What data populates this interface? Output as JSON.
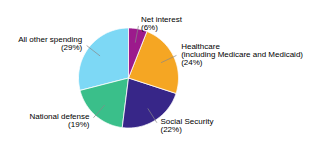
{
  "chart_data": {
    "type": "pie",
    "categories": [
      "All other spending\n(29%)",
      "National defense\n(19%)",
      "Social Security\n(22%)",
      "Healthcare\n(including Medicare and Medicaid)\n(24%)",
      "Net interest\n(6%)"
    ],
    "values": [
      29,
      19,
      22,
      24,
      6
    ],
    "colors": [
      "#7dd8f5",
      "#3abf8a",
      "#372688",
      "#f5a623",
      "#9c1a8c"
    ]
  }
}
